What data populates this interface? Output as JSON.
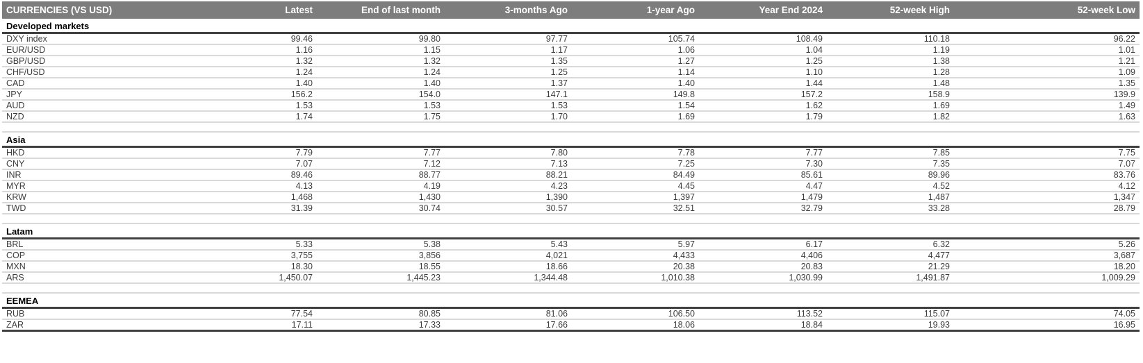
{
  "table": {
    "title_col": "CURRENCIES (VS USD)",
    "columns": [
      "Latest",
      "End of last month",
      "3-months Ago",
      "1-year Ago",
      "Year End 2024",
      "52-week High",
      "52-week Low"
    ],
    "sections": [
      {
        "name": "Developed markets",
        "rows": [
          {
            "label": "DXY index",
            "values": [
              "99.46",
              "99.80",
              "97.77",
              "105.74",
              "108.49",
              "110.18",
              "96.22"
            ]
          },
          {
            "label": "EUR/USD",
            "values": [
              "1.16",
              "1.15",
              "1.17",
              "1.06",
              "1.04",
              "1.19",
              "1.01"
            ]
          },
          {
            "label": "GBP/USD",
            "values": [
              "1.32",
              "1.32",
              "1.35",
              "1.27",
              "1.25",
              "1.38",
              "1.21"
            ]
          },
          {
            "label": "CHF/USD",
            "values": [
              "1.24",
              "1.24",
              "1.25",
              "1.14",
              "1.10",
              "1.28",
              "1.09"
            ]
          },
          {
            "label": "CAD",
            "values": [
              "1.40",
              "1.40",
              "1.37",
              "1.40",
              "1.44",
              "1.48",
              "1.35"
            ]
          },
          {
            "label": "JPY",
            "values": [
              "156.2",
              "154.0",
              "147.1",
              "149.8",
              "157.2",
              "158.9",
              "139.9"
            ]
          },
          {
            "label": "AUD",
            "values": [
              "1.53",
              "1.53",
              "1.53",
              "1.54",
              "1.62",
              "1.69",
              "1.49"
            ]
          },
          {
            "label": "NZD",
            "values": [
              "1.74",
              "1.75",
              "1.70",
              "1.69",
              "1.79",
              "1.82",
              "1.63"
            ]
          }
        ]
      },
      {
        "name": "Asia",
        "rows": [
          {
            "label": "HKD",
            "values": [
              "7.79",
              "7.77",
              "7.80",
              "7.78",
              "7.77",
              "7.85",
              "7.75"
            ]
          },
          {
            "label": "CNY",
            "values": [
              "7.07",
              "7.12",
              "7.13",
              "7.25",
              "7.30",
              "7.35",
              "7.07"
            ]
          },
          {
            "label": "INR",
            "values": [
              "89.46",
              "88.77",
              "88.21",
              "84.49",
              "85.61",
              "89.96",
              "83.76"
            ]
          },
          {
            "label": "MYR",
            "values": [
              "4.13",
              "4.19",
              "4.23",
              "4.45",
              "4.47",
              "4.52",
              "4.12"
            ]
          },
          {
            "label": "KRW",
            "values": [
              "1,468",
              "1,430",
              "1,390",
              "1,397",
              "1,479",
              "1,487",
              "1,347"
            ]
          },
          {
            "label": "TWD",
            "values": [
              "31.39",
              "30.74",
              "30.57",
              "32.51",
              "32.79",
              "33.28",
              "28.79"
            ]
          }
        ]
      },
      {
        "name": "Latam",
        "rows": [
          {
            "label": "BRL",
            "values": [
              "5.33",
              "5.38",
              "5.43",
              "5.97",
              "6.17",
              "6.32",
              "5.26"
            ]
          },
          {
            "label": "COP",
            "values": [
              "3,755",
              "3,856",
              "4,021",
              "4,433",
              "4,406",
              "4,477",
              "3,687"
            ]
          },
          {
            "label": "MXN",
            "values": [
              "18.30",
              "18.55",
              "18.66",
              "20.38",
              "20.83",
              "21.29",
              "18.20"
            ]
          },
          {
            "label": "ARS",
            "values": [
              "1,450.07",
              "1,445.23",
              "1,344.48",
              "1,010.38",
              "1,030.99",
              "1,491.87",
              "1,009.29"
            ]
          }
        ]
      },
      {
        "name": "EEMEA",
        "rows": [
          {
            "label": "RUB",
            "values": [
              "77.54",
              "80.85",
              "81.06",
              "106.50",
              "113.52",
              "115.07",
              "74.05"
            ]
          },
          {
            "label": "ZAR",
            "values": [
              "17.11",
              "17.33",
              "17.66",
              "18.06",
              "18.84",
              "19.93",
              "16.95"
            ]
          }
        ]
      }
    ],
    "colors": {
      "header_bg": "#7d7d7d",
      "header_text": "#ffffff",
      "section_rule": "#404040",
      "row_rule": "#d9d9d9",
      "body_text": "#3d3d3d"
    }
  }
}
